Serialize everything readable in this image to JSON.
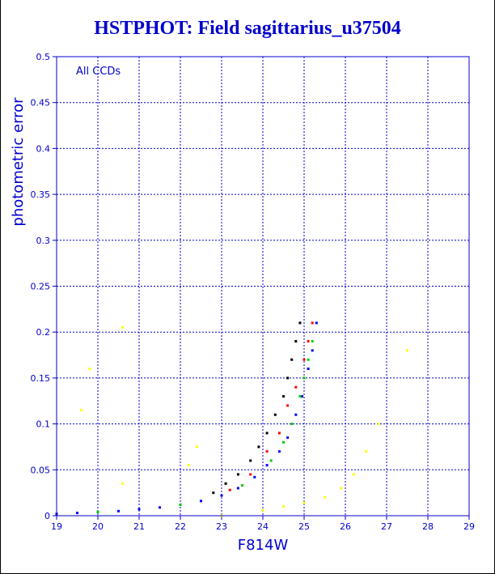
{
  "title": "HSTPHOT: Field sagittarius_u37504",
  "chart_data": {
    "type": "scatter",
    "title": "HSTPHOT: Field sagittarius_u37504",
    "xlabel": "F814W",
    "ylabel": "photometric error",
    "annotation": "All CCDs",
    "xlim": [
      19,
      29
    ],
    "ylim": [
      0,
      0.5
    ],
    "xticks": [
      19,
      20,
      21,
      22,
      23,
      24,
      25,
      26,
      27,
      28,
      29
    ],
    "yticks": [
      0,
      0.05,
      0.1,
      0.15,
      0.2,
      0.25,
      0.3,
      0.35,
      0.4,
      0.45,
      0.5
    ],
    "grid": true,
    "colors": {
      "axis": "#0000cc",
      "grid": "#0000cc",
      "text": "#0000cc"
    },
    "series": [
      {
        "color": "#0000ff",
        "points": [
          [
            19.0,
            0.002
          ],
          [
            19.5,
            0.003
          ],
          [
            20.0,
            0.004
          ],
          [
            20.5,
            0.005
          ],
          [
            21.0,
            0.007
          ],
          [
            21.5,
            0.009
          ],
          [
            22.0,
            0.012
          ],
          [
            22.5,
            0.016
          ],
          [
            23.0,
            0.022
          ],
          [
            23.4,
            0.03
          ],
          [
            23.8,
            0.042
          ],
          [
            24.1,
            0.055
          ],
          [
            24.4,
            0.07
          ],
          [
            24.6,
            0.085
          ],
          [
            24.8,
            0.11
          ],
          [
            24.95,
            0.13
          ],
          [
            25.1,
            0.16
          ],
          [
            25.2,
            0.18
          ],
          [
            25.3,
            0.21
          ]
        ]
      },
      {
        "color": "#00cc00",
        "points": [
          [
            20.0,
            0.004
          ],
          [
            22.0,
            0.012
          ],
          [
            23.5,
            0.033
          ],
          [
            24.2,
            0.06
          ],
          [
            24.5,
            0.08
          ],
          [
            24.7,
            0.1
          ],
          [
            24.9,
            0.13
          ],
          [
            25.0,
            0.15
          ],
          [
            25.1,
            0.17
          ],
          [
            25.2,
            0.19
          ]
        ]
      },
      {
        "color": "#ff0000",
        "points": [
          [
            23.2,
            0.028
          ],
          [
            23.7,
            0.045
          ],
          [
            24.1,
            0.07
          ],
          [
            24.4,
            0.09
          ],
          [
            24.6,
            0.12
          ],
          [
            24.8,
            0.14
          ],
          [
            25.0,
            0.17
          ],
          [
            25.1,
            0.19
          ],
          [
            25.2,
            0.21
          ]
        ]
      },
      {
        "color": "#000000",
        "points": [
          [
            22.8,
            0.025
          ],
          [
            23.1,
            0.035
          ],
          [
            23.4,
            0.045
          ],
          [
            23.7,
            0.06
          ],
          [
            23.9,
            0.075
          ],
          [
            24.1,
            0.09
          ],
          [
            24.3,
            0.11
          ],
          [
            24.5,
            0.13
          ],
          [
            24.6,
            0.15
          ],
          [
            24.7,
            0.17
          ],
          [
            24.8,
            0.19
          ],
          [
            24.9,
            0.21
          ]
        ]
      },
      {
        "color": "#ffff00",
        "points": [
          [
            19.6,
            0.115
          ],
          [
            19.8,
            0.16
          ],
          [
            20.6,
            0.205
          ],
          [
            20.6,
            0.035
          ],
          [
            22.2,
            0.055
          ],
          [
            22.4,
            0.075
          ],
          [
            23.0,
            0.0
          ],
          [
            24.0,
            0.006
          ],
          [
            24.5,
            0.01
          ],
          [
            25.0,
            0.014
          ],
          [
            25.5,
            0.02
          ],
          [
            25.9,
            0.03
          ],
          [
            26.2,
            0.045
          ],
          [
            26.5,
            0.07
          ],
          [
            26.8,
            0.1
          ],
          [
            27.5,
            0.18
          ]
        ]
      }
    ]
  }
}
